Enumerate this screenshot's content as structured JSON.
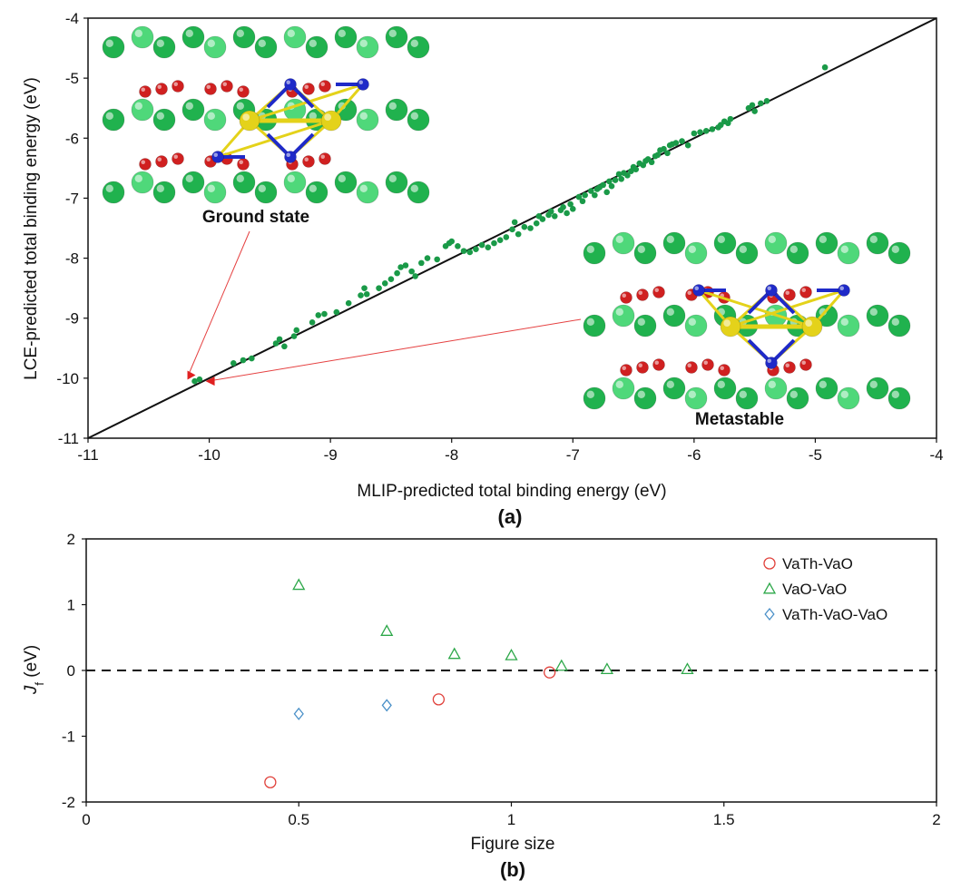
{
  "chart_data": [
    {
      "panel": "(a)",
      "type": "scatter",
      "xlabel": "MLIP-predicted total binding energy (eV)",
      "ylabel": "LCE-predicted total binding energy (eV)",
      "xlim": [
        -11,
        -4
      ],
      "ylim": [
        -11,
        -4
      ],
      "xticks": [
        -11,
        -10,
        -9,
        -8,
        -7,
        -6,
        -5,
        -4
      ],
      "yticks": [
        -11,
        -10,
        -9,
        -8,
        -7,
        -6,
        -5,
        -4
      ],
      "reference_line": {
        "x": [
          -11,
          -4
        ],
        "y": [
          -11,
          -4
        ]
      },
      "point_color": "#1a9a48",
      "highlight_color": "#e02020",
      "series": [
        {
          "name": "configurations",
          "points": [
            [
              -10.12,
              -10.05
            ],
            [
              -10.08,
              -10.02
            ],
            [
              -9.8,
              -9.75
            ],
            [
              -9.72,
              -9.7
            ],
            [
              -9.65,
              -9.67
            ],
            [
              -9.45,
              -9.42
            ],
            [
              -9.42,
              -9.35
            ],
            [
              -9.38,
              -9.47
            ],
            [
              -9.3,
              -9.3
            ],
            [
              -9.28,
              -9.2
            ],
            [
              -9.15,
              -9.07
            ],
            [
              -9.1,
              -8.95
            ],
            [
              -9.05,
              -8.93
            ],
            [
              -8.95,
              -8.9
            ],
            [
              -8.85,
              -8.75
            ],
            [
              -8.75,
              -8.62
            ],
            [
              -8.72,
              -8.5
            ],
            [
              -8.7,
              -8.6
            ],
            [
              -8.6,
              -8.5
            ],
            [
              -8.55,
              -8.42
            ],
            [
              -8.5,
              -8.35
            ],
            [
              -8.45,
              -8.25
            ],
            [
              -8.42,
              -8.15
            ],
            [
              -8.38,
              -8.12
            ],
            [
              -8.33,
              -8.22
            ],
            [
              -8.3,
              -8.3
            ],
            [
              -8.25,
              -8.08
            ],
            [
              -8.2,
              -8.0
            ],
            [
              -8.12,
              -8.02
            ],
            [
              -8.05,
              -7.8
            ],
            [
              -8.02,
              -7.75
            ],
            [
              -8.0,
              -7.72
            ],
            [
              -7.95,
              -7.8
            ],
            [
              -7.9,
              -7.88
            ],
            [
              -7.85,
              -7.9
            ],
            [
              -7.8,
              -7.85
            ],
            [
              -7.75,
              -7.78
            ],
            [
              -7.7,
              -7.82
            ],
            [
              -7.65,
              -7.75
            ],
            [
              -7.6,
              -7.7
            ],
            [
              -7.55,
              -7.65
            ],
            [
              -7.5,
              -7.52
            ],
            [
              -7.48,
              -7.4
            ],
            [
              -7.45,
              -7.6
            ],
            [
              -7.4,
              -7.48
            ],
            [
              -7.35,
              -7.5
            ],
            [
              -7.3,
              -7.42
            ],
            [
              -7.28,
              -7.3
            ],
            [
              -7.25,
              -7.35
            ],
            [
              -7.2,
              -7.28
            ],
            [
              -7.18,
              -7.22
            ],
            [
              -7.15,
              -7.3
            ],
            [
              -7.1,
              -7.2
            ],
            [
              -7.08,
              -7.15
            ],
            [
              -7.05,
              -7.25
            ],
            [
              -7.02,
              -7.1
            ],
            [
              -7.0,
              -7.18
            ],
            [
              -6.95,
              -6.98
            ],
            [
              -6.92,
              -7.05
            ],
            [
              -6.9,
              -6.95
            ],
            [
              -6.85,
              -6.88
            ],
            [
              -6.82,
              -6.95
            ],
            [
              -6.8,
              -6.85
            ],
            [
              -6.78,
              -6.82
            ],
            [
              -6.75,
              -6.78
            ],
            [
              -6.72,
              -6.9
            ],
            [
              -6.7,
              -6.72
            ],
            [
              -6.68,
              -6.8
            ],
            [
              -6.65,
              -6.7
            ],
            [
              -6.62,
              -6.6
            ],
            [
              -6.6,
              -6.68
            ],
            [
              -6.58,
              -6.58
            ],
            [
              -6.55,
              -6.62
            ],
            [
              -6.52,
              -6.55
            ],
            [
              -6.5,
              -6.48
            ],
            [
              -6.48,
              -6.52
            ],
            [
              -6.45,
              -6.42
            ],
            [
              -6.42,
              -6.45
            ],
            [
              -6.4,
              -6.38
            ],
            [
              -6.38,
              -6.35
            ],
            [
              -6.35,
              -6.4
            ],
            [
              -6.32,
              -6.3
            ],
            [
              -6.3,
              -6.28
            ],
            [
              -6.28,
              -6.2
            ],
            [
              -6.25,
              -6.18
            ],
            [
              -6.22,
              -6.25
            ],
            [
              -6.2,
              -6.12
            ],
            [
              -6.18,
              -6.1
            ],
            [
              -6.15,
              -6.08
            ],
            [
              -6.1,
              -6.05
            ],
            [
              -6.05,
              -6.12
            ],
            [
              -6.0,
              -5.92
            ],
            [
              -5.95,
              -5.9
            ],
            [
              -5.9,
              -5.88
            ],
            [
              -5.85,
              -5.85
            ],
            [
              -5.8,
              -5.82
            ],
            [
              -5.78,
              -5.78
            ],
            [
              -5.75,
              -5.72
            ],
            [
              -5.72,
              -5.75
            ],
            [
              -5.7,
              -5.68
            ],
            [
              -5.55,
              -5.5
            ],
            [
              -5.52,
              -5.45
            ],
            [
              -5.5,
              -5.55
            ],
            [
              -5.45,
              -5.42
            ],
            [
              -5.4,
              -5.38
            ],
            [
              -4.92,
              -4.82
            ]
          ]
        },
        {
          "name": "highlighted",
          "points": [
            [
              -10.15,
              -9.95
            ],
            [
              -10.0,
              -10.05
            ]
          ]
        }
      ],
      "annotations": [
        {
          "text": "Ground state",
          "points_to": [
            -10.15,
            -9.95
          ]
        },
        {
          "text": "Metastable",
          "points_to": [
            -10.0,
            -10.05
          ]
        }
      ]
    },
    {
      "panel": "(b)",
      "type": "scatter",
      "xlabel": "Figure size",
      "ylabel": "J",
      "ylabel_sub": "f",
      "ylabel_unit": " (eV)",
      "xlim": [
        0,
        2
      ],
      "ylim": [
        -2,
        2
      ],
      "xticks": [
        0,
        0.5,
        1,
        1.5,
        2
      ],
      "xtick_labels": [
        "0",
        "0.5",
        "1",
        "1.5",
        "2"
      ],
      "yticks": [
        -2,
        -1,
        0,
        1,
        2
      ],
      "ytick_labels": [
        "-2",
        "-1",
        "0",
        "1",
        "2"
      ],
      "reference_line": {
        "y": 0,
        "style": "dashed"
      },
      "legend_position": "top-right",
      "series": [
        {
          "name": "VaTh-VaO",
          "marker": "circle",
          "color": "#e0403a",
          "x": [
            0.433,
            0.829,
            1.09
          ],
          "y": [
            -1.7,
            -0.44,
            -0.03
          ]
        },
        {
          "name": "VaO-VaO",
          "marker": "triangle",
          "color": "#2ea84a",
          "x": [
            0.5,
            0.707,
            0.866,
            1.0,
            1.118,
            1.225,
            1.414
          ],
          "y": [
            1.3,
            0.6,
            0.25,
            0.23,
            0.07,
            0.02,
            0.02
          ]
        },
        {
          "name": "VaTh-VaO-VaO",
          "marker": "diamond",
          "color": "#4a90c8",
          "x": [
            0.5,
            0.707
          ],
          "y": [
            -0.66,
            -0.53
          ]
        }
      ]
    }
  ],
  "insets": {
    "ground_state_label": "Ground state",
    "metastable_label": "Metastable",
    "colors": {
      "green": "#2ecc5a",
      "red": "#d02020",
      "blue": "#1f2ac8",
      "yellow": "#e4d21a"
    }
  }
}
